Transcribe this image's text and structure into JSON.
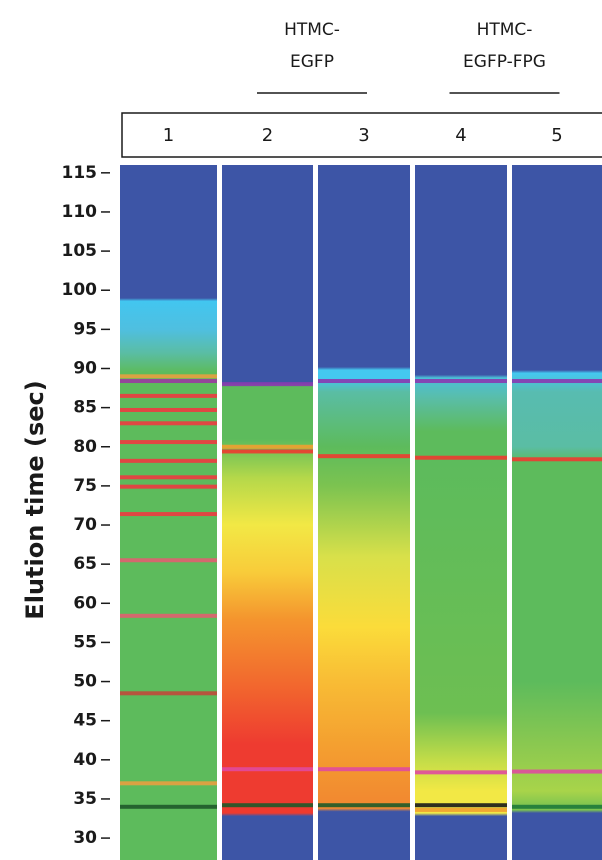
{
  "chart_data": {
    "type": "gel",
    "groups": [
      {
        "lines": [
          "HTMC-",
          "EGFP"
        ]
      },
      {
        "lines": [
          "HTMC-",
          "EGFP-FPG"
        ]
      }
    ],
    "y_label": "Elution time (sec)",
    "ylim": [
      27.2,
      116
    ],
    "yticks": [
      30,
      35,
      40,
      45,
      50,
      55,
      60,
      65,
      70,
      75,
      80,
      85,
      90,
      95,
      100,
      105,
      110,
      115
    ],
    "lanes": [
      {
        "name": "1",
        "gradient_stops": [
          99,
          98.6,
          95,
          92,
          89.5,
          30
        ],
        "gradient_colors": [
          "#3d55a6",
          "#42c6f0",
          "#4fbfe0",
          "#5abda4",
          "#5dbb5c",
          "#5dbb5c"
        ],
        "bands": [
          89,
          88.4,
          86.5,
          84.7,
          83,
          80.6,
          78.2,
          76.1,
          74.9,
          71.4,
          65.5,
          58.4,
          48.5,
          37,
          34
        ],
        "band_colors": [
          "#e8a040",
          "#9a3aa0",
          "#ee3b40",
          "#ee3b40",
          "#ee3b40",
          "#ee3b40",
          "#ee3b40",
          "#ee3b40",
          "#ee3b40",
          "#ee3b40",
          "#e06070",
          "#e06070",
          "#c04a3a",
          "#e8a040",
          "#1e5a2a"
        ]
      },
      {
        "name": "2",
        "gradient_stops": [
          88.2,
          87.8,
          81,
          76,
          70,
          64,
          58,
          50,
          42,
          34,
          33.2,
          32.8
        ],
        "gradient_colors": [
          "#3d55a6",
          "#5dbb5c",
          "#5dbb5c",
          "#b5d84a",
          "#f2e845",
          "#f8cc3a",
          "#f4952e",
          "#f26a2e",
          "#ee3b30",
          "#ee3b30",
          "#ee3b30",
          "#3d55a6"
        ],
        "bands": [
          88,
          80,
          79.4,
          38.8,
          34.2,
          33.5
        ],
        "band_colors": [
          "#8a3ab0",
          "#f0a030",
          "#ee3b30",
          "#e04aa0",
          "#1e5a2a",
          "#ee3b30"
        ]
      },
      {
        "name": "3",
        "gradient_stops": [
          90.2,
          89.8,
          88.8,
          87,
          80,
          75,
          66,
          57,
          50,
          42,
          35,
          33.8,
          33.4
        ],
        "gradient_colors": [
          "#3d55a6",
          "#44c8f0",
          "#44c8f0",
          "#5abda4",
          "#5dbb5c",
          "#7cc350",
          "#d8e04a",
          "#fbdc3a",
          "#f8bc35",
          "#f4a030",
          "#f28a30",
          "#f28a30",
          "#3d55a6"
        ],
        "bands": [
          88.4,
          78.8,
          38.8,
          34.2
        ],
        "band_colors": [
          "#8a3ab0",
          "#ee3b30",
          "#e04aa0",
          "#1e5a2a"
        ]
      },
      {
        "name": "4",
        "gradient_stops": [
          89.2,
          88.8,
          86,
          82,
          78,
          46,
          40,
          36,
          34,
          33.2,
          32.8
        ],
        "gradient_colors": [
          "#3d55a6",
          "#4cc0d8",
          "#5abda4",
          "#5dbb5c",
          "#5dbb5c",
          "#6dbf52",
          "#c2dc48",
          "#f2e845",
          "#f2e845",
          "#f2e845",
          "#3d55a6"
        ],
        "bands": [
          88.4,
          78.6,
          38.4,
          34.2,
          33.6
        ],
        "band_colors": [
          "#8a3ab0",
          "#ee3b30",
          "#e04aa0",
          "#1a1a1a",
          "#f0a030"
        ]
      },
      {
        "name": "5",
        "gradient_stops": [
          89.8,
          89.4,
          87,
          80,
          78,
          50,
          42,
          36,
          34,
          33.6,
          33.2
        ],
        "gradient_colors": [
          "#3d55a6",
          "#44c8f0",
          "#58bcb0",
          "#5abda4",
          "#5dbb5c",
          "#5dbb5c",
          "#8ac850",
          "#a8d44a",
          "#7cc350",
          "#7cc350",
          "#3d55a6"
        ],
        "bands": [
          88.4,
          78.4,
          38.5,
          34
        ],
        "band_colors": [
          "#8a3ab0",
          "#ee3b30",
          "#e04aa0",
          "#1e7a3a"
        ]
      }
    ]
  }
}
